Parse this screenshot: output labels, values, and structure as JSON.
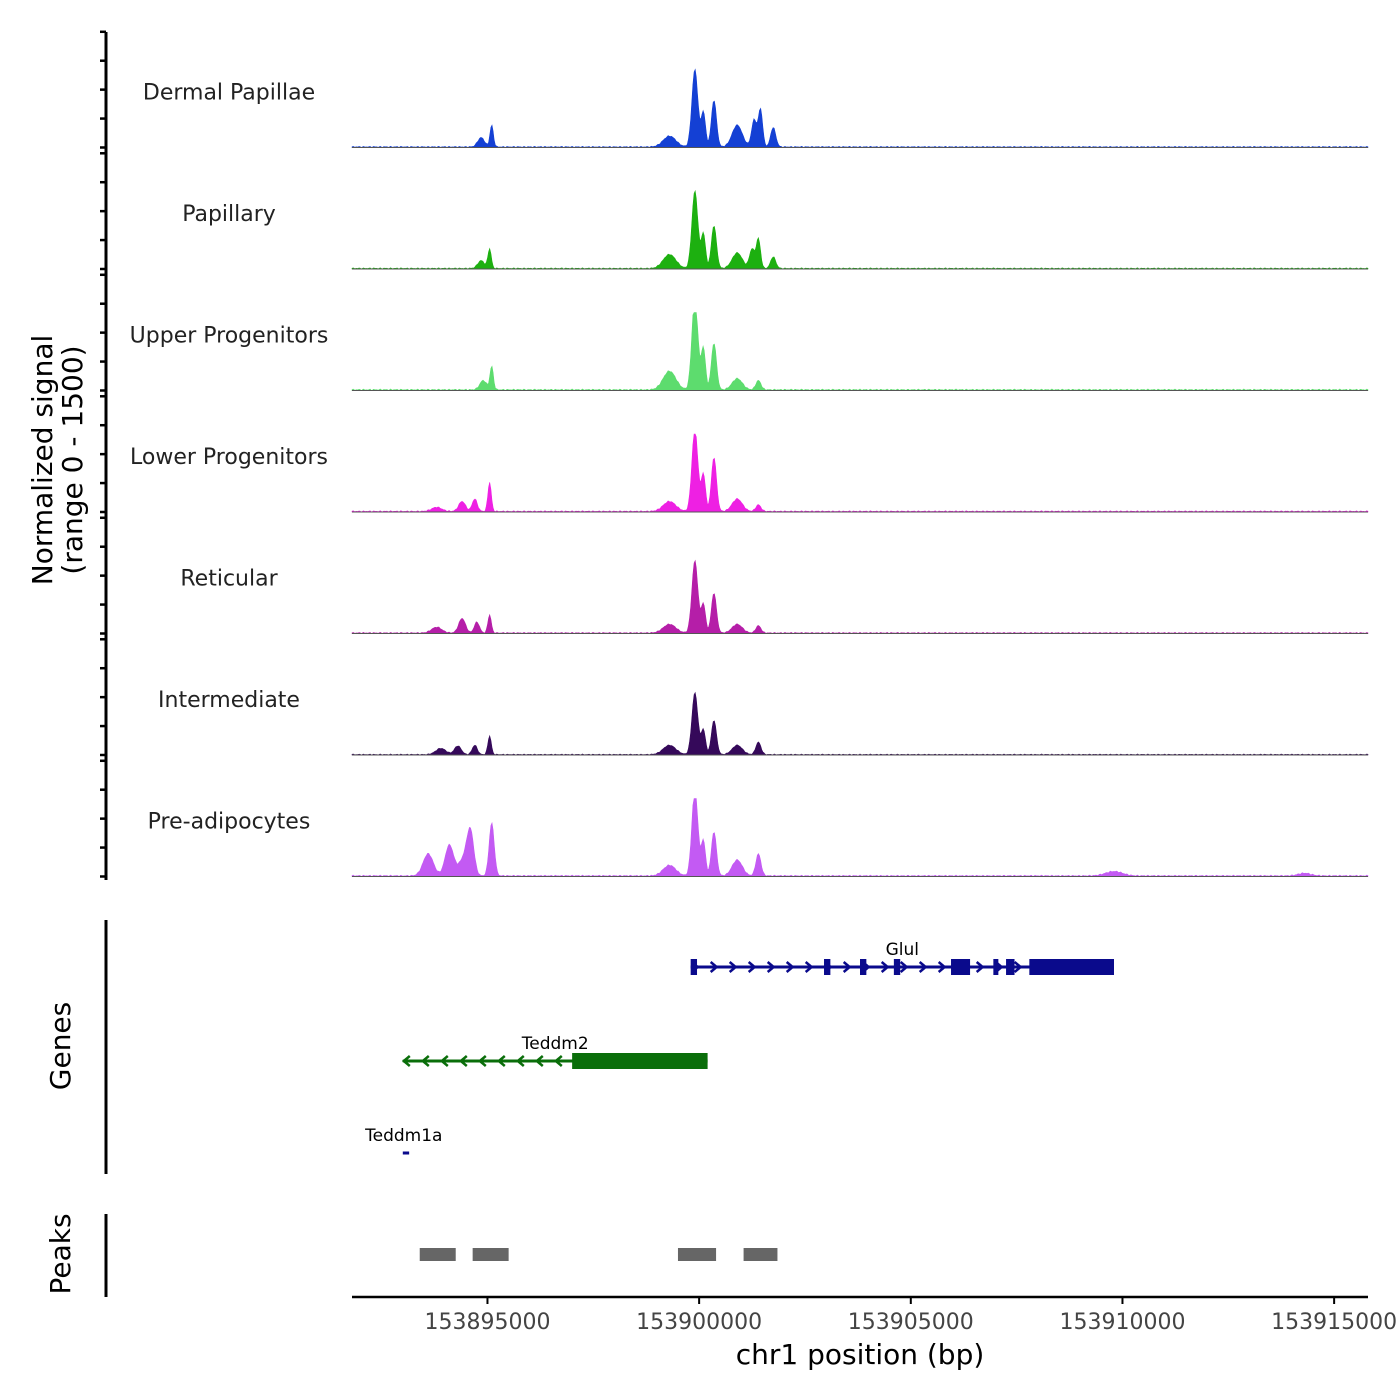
{
  "chart_data": {
    "type": "area",
    "chromosome": "chr1",
    "xlim": [
      153891800,
      153915800
    ],
    "x_ticks": [
      153895000,
      153900000,
      153905000,
      153910000,
      153915000
    ],
    "x_tick_labels": [
      "153895000",
      "153900000",
      "153905000",
      "153910000",
      "153915000"
    ],
    "xlabel": "chr1 position (bp)",
    "ylabel_line1": "Normalized signal",
    "ylabel_line2": "(range 0 - 1500)",
    "ylim": [
      0,
      1500
    ],
    "genes_label": "Genes",
    "peaks_label": "Peaks",
    "series": [
      {
        "name": "Dermal Papillae",
        "color": "#1440d4",
        "scale": 0.75,
        "peaks": [
          [
            153894850,
            80,
            0.12
          ],
          [
            153895100,
            40,
            0.28
          ],
          [
            153899300,
            150,
            0.14
          ],
          [
            153899900,
            70,
            1.0
          ],
          [
            153900100,
            50,
            0.45
          ],
          [
            153900350,
            60,
            0.6
          ],
          [
            153900900,
            120,
            0.28
          ],
          [
            153901300,
            60,
            0.35
          ],
          [
            153901450,
            50,
            0.48
          ],
          [
            153901750,
            60,
            0.25
          ]
        ]
      },
      {
        "name": "Papillary",
        "color": "#1db010",
        "scale": 0.75,
        "peaks": [
          [
            153894850,
            80,
            0.1
          ],
          [
            153895050,
            40,
            0.25
          ],
          [
            153899300,
            150,
            0.18
          ],
          [
            153899900,
            70,
            1.0
          ],
          [
            153900100,
            50,
            0.45
          ],
          [
            153900350,
            60,
            0.55
          ],
          [
            153900900,
            120,
            0.2
          ],
          [
            153901250,
            60,
            0.25
          ],
          [
            153901400,
            50,
            0.38
          ],
          [
            153901750,
            60,
            0.15
          ]
        ]
      },
      {
        "name": "Upper Progenitors",
        "color": "#5ddc6e",
        "scale": 0.9,
        "peaks": [
          [
            153894900,
            80,
            0.1
          ],
          [
            153895100,
            40,
            0.25
          ],
          [
            153899300,
            150,
            0.2
          ],
          [
            153899900,
            70,
            1.0
          ],
          [
            153900100,
            50,
            0.45
          ],
          [
            153900350,
            60,
            0.5
          ],
          [
            153900900,
            120,
            0.12
          ],
          [
            153901400,
            60,
            0.1
          ]
        ]
      },
      {
        "name": "Lower Progenitors",
        "color": "#ee20e3",
        "scale": 0.8,
        "peaks": [
          [
            153893800,
            120,
            0.05
          ],
          [
            153894400,
            80,
            0.12
          ],
          [
            153894700,
            60,
            0.15
          ],
          [
            153895050,
            40,
            0.35
          ],
          [
            153899300,
            150,
            0.12
          ],
          [
            153899900,
            70,
            1.0
          ],
          [
            153900100,
            50,
            0.45
          ],
          [
            153900350,
            60,
            0.65
          ],
          [
            153900900,
            120,
            0.15
          ],
          [
            153901400,
            60,
            0.08
          ]
        ]
      },
      {
        "name": "Reticular",
        "color": "#b51ea8",
        "scale": 0.7,
        "peaks": [
          [
            153893800,
            120,
            0.08
          ],
          [
            153894400,
            80,
            0.2
          ],
          [
            153894750,
            60,
            0.15
          ],
          [
            153895050,
            40,
            0.25
          ],
          [
            153899300,
            150,
            0.12
          ],
          [
            153899900,
            70,
            1.0
          ],
          [
            153900100,
            50,
            0.4
          ],
          [
            153900350,
            60,
            0.55
          ],
          [
            153900900,
            120,
            0.12
          ],
          [
            153901400,
            60,
            0.1
          ]
        ]
      },
      {
        "name": "Intermediate",
        "color": "#35095a",
        "scale": 0.6,
        "peaks": [
          [
            153893900,
            120,
            0.1
          ],
          [
            153894300,
            80,
            0.14
          ],
          [
            153894700,
            60,
            0.15
          ],
          [
            153895050,
            40,
            0.3
          ],
          [
            153899300,
            150,
            0.15
          ],
          [
            153899900,
            70,
            1.0
          ],
          [
            153900100,
            50,
            0.4
          ],
          [
            153900350,
            60,
            0.55
          ],
          [
            153900900,
            120,
            0.15
          ],
          [
            153901400,
            60,
            0.2
          ]
        ]
      },
      {
        "name": "Pre-adipocytes",
        "color": "#c35af3",
        "scale": 0.85,
        "peaks": [
          [
            153893600,
            120,
            0.25
          ],
          [
            153894100,
            100,
            0.35
          ],
          [
            153894600,
            80,
            0.45
          ],
          [
            153894450,
            120,
            0.2
          ],
          [
            153895100,
            60,
            0.6
          ],
          [
            153899300,
            150,
            0.12
          ],
          [
            153899900,
            70,
            1.0
          ],
          [
            153900100,
            50,
            0.4
          ],
          [
            153900350,
            60,
            0.5
          ],
          [
            153900900,
            120,
            0.18
          ],
          [
            153901400,
            60,
            0.25
          ],
          [
            153909800,
            200,
            0.05
          ],
          [
            153914300,
            150,
            0.03
          ]
        ]
      }
    ],
    "genes": [
      {
        "name": "Glul",
        "strand": "+",
        "start": 153899800,
        "end": 153909800,
        "exons": [
          [
            153899800,
            153899950
          ],
          [
            153902950,
            153903100
          ],
          [
            153903800,
            153903950
          ],
          [
            153904600,
            153904750
          ],
          [
            153905950,
            153906400
          ],
          [
            153906950,
            153907050
          ],
          [
            153907250,
            153907450
          ],
          [
            153907800,
            153909800
          ]
        ],
        "color": "#0a0a8c",
        "row": 1
      },
      {
        "name": "Teddm2",
        "strand": "-",
        "start": 153893000,
        "end": 153900200,
        "exons": [
          [
            153897000,
            153900200
          ]
        ],
        "color": "#0a6e0a",
        "row": 2
      },
      {
        "name": "Teddm1a",
        "strand": "+",
        "start": 153893000,
        "end": 153893150,
        "exons": [],
        "color": "#0a0a8c",
        "row": 3
      }
    ],
    "peak_regions": [
      [
        153893400,
        153894250
      ],
      [
        153894650,
        153895500
      ],
      [
        153899500,
        153900400
      ],
      [
        153901050,
        153901850
      ]
    ],
    "peak_color": "#666666"
  }
}
